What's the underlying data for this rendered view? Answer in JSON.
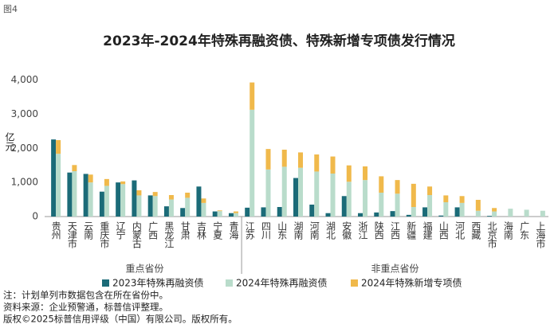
{
  "figure_label": "图4",
  "chart_data": {
    "type": "grouped_stacked_bar",
    "title": "2023年-2024年特殊再融资债、特殊新增专项债发行情况",
    "y_label": "亿元",
    "groups": [
      {
        "name": "重点省份",
        "categories": [
          "贵州",
          "天津市",
          "云南",
          "重庆市",
          "辽宁",
          "内蒙古",
          "广西",
          "黑龙江",
          "甘肃",
          "吉林",
          "宁夏",
          "青海"
        ]
      },
      {
        "name": "非重点省份",
        "categories": [
          "江苏",
          "四川",
          "山东",
          "湖南",
          "河南",
          "湖北",
          "安徽",
          "浙江",
          "陕西",
          "江西",
          "新疆",
          "福建",
          "山西",
          "河北",
          "西藏",
          "北京市",
          "海南",
          "广东",
          "上海市"
        ]
      }
    ],
    "series": [
      {
        "name": "2023年特殊再融资债",
        "color": "#1b6b78",
        "stack": "a",
        "values": [
          2260,
          1290,
          1250,
          730,
          1000,
          1060,
          620,
          300,
          250,
          880,
          150,
          100,
          260,
          270,
          280,
          1130,
          350,
          100,
          600,
          100,
          120,
          160,
          50,
          270,
          30,
          270,
          0,
          20,
          0,
          0,
          0
        ]
      },
      {
        "name": "2024年特殊再融资债",
        "color": "#b9dccb",
        "stack": "b",
        "values": [
          1840,
          1330,
          1000,
          900,
          950,
          620,
          600,
          500,
          550,
          400,
          160,
          100,
          3130,
          1380,
          1460,
          1430,
          1320,
          1260,
          1020,
          1070,
          700,
          670,
          280,
          630,
          420,
          400,
          170,
          150,
          230,
          200,
          170
        ]
      },
      {
        "name": "2024年特殊新增专项债",
        "color": "#f0b94b",
        "stack": "b",
        "values": [
          400,
          180,
          230,
          200,
          80,
          150,
          120,
          130,
          150,
          130,
          20,
          50,
          800,
          600,
          500,
          450,
          500,
          500,
          480,
          400,
          480,
          400,
          680,
          250,
          200,
          200,
          320,
          100,
          0,
          0,
          0
        ]
      }
    ],
    "ylim": [
      0,
      4200
    ],
    "yticks": [
      0,
      {
        "value": 1000,
        "label": "1,000"
      },
      {
        "value": 2000,
        "label": "2,000"
      },
      {
        "value": 3000,
        "label": "3,000"
      },
      {
        "value": 4000,
        "label": "4,000"
      }
    ],
    "grid": false
  },
  "notes": [
    "注：计划单列市数据包含在所在省份中。",
    "资料来源：企业预警通，标普信评整理。",
    "版权©2025标普信用评级（中国）有限公司。版权所有。"
  ]
}
